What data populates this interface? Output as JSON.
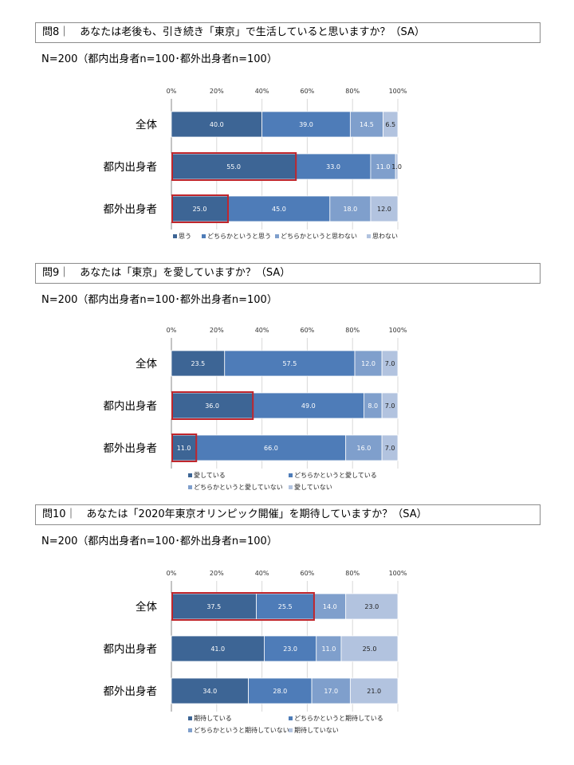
{
  "colors": [
    "#3d6595",
    "#4e7cb8",
    "#7f9fcc",
    "#b2c3df"
  ],
  "highlight_color": "#c0262c",
  "axis_ticks": [
    "0%",
    "20%",
    "40%",
    "60%",
    "80%",
    "100%"
  ],
  "sections": [
    {
      "question": "問8｜　あなたは老後も、引き続き「東京」で生活していると思いますか？（SA）",
      "n_text": "N=200（都内出身者n=100･都外出身者n=100）"
    },
    {
      "question": "問9｜　あなたは「東京」を愛していますか？（SA）",
      "n_text": "N=200（都内出身者n=100･都外出身者n=100）"
    },
    {
      "question": "問10｜　あなたは「2020年東京オリンピック開催」を期待していますか？（SA）",
      "n_text": "N=200（都内出身者n=100･都外出身者n=100）"
    }
  ],
  "chart_data": [
    {
      "type": "bar",
      "stacked": true,
      "orientation": "horizontal",
      "xlim": [
        0,
        100
      ],
      "categories": [
        "全体",
        "都内出身者",
        "都外出身者"
      ],
      "series": [
        {
          "name": "思う",
          "values": [
            40.0,
            55.0,
            25.0
          ]
        },
        {
          "name": "どちらかというと思う",
          "values": [
            39.0,
            33.0,
            45.0
          ]
        },
        {
          "name": "どちらかというと思わない",
          "values": [
            14.5,
            11.0,
            18.0
          ]
        },
        {
          "name": "思わない",
          "values": [
            6.5,
            1.0,
            12.0
          ]
        }
      ],
      "highlight": [
        {
          "category": 1,
          "series": [
            0
          ]
        },
        {
          "category": 2,
          "series": [
            0
          ]
        }
      ],
      "legend": "bottom",
      "legend_rows": 1
    },
    {
      "type": "bar",
      "stacked": true,
      "orientation": "horizontal",
      "xlim": [
        0,
        100
      ],
      "categories": [
        "全体",
        "都内出身者",
        "都外出身者"
      ],
      "series": [
        {
          "name": "愛している",
          "values": [
            23.5,
            36.0,
            11.0
          ]
        },
        {
          "name": "どちらかというと愛している",
          "values": [
            57.5,
            49.0,
            66.0
          ]
        },
        {
          "name": "どちらかというと愛していない",
          "values": [
            12.0,
            8.0,
            16.0
          ]
        },
        {
          "name": "愛していない",
          "values": [
            7.0,
            7.0,
            7.0
          ]
        }
      ],
      "highlight": [
        {
          "category": 1,
          "series": [
            0
          ]
        },
        {
          "category": 2,
          "series": [
            0
          ]
        }
      ],
      "legend": "bottom",
      "legend_rows": 2
    },
    {
      "type": "bar",
      "stacked": true,
      "orientation": "horizontal",
      "xlim": [
        0,
        100
      ],
      "categories": [
        "全体",
        "都内出身者",
        "都外出身者"
      ],
      "series": [
        {
          "name": "期待している",
          "values": [
            37.5,
            41.0,
            34.0
          ]
        },
        {
          "name": "どちらかというと期待している",
          "values": [
            25.5,
            23.0,
            28.0
          ]
        },
        {
          "name": "どちらかというと期待していない",
          "values": [
            14.0,
            11.0,
            17.0
          ]
        },
        {
          "name": "期待していない",
          "values": [
            23.0,
            25.0,
            21.0
          ]
        }
      ],
      "highlight": [
        {
          "category": 0,
          "series": [
            0,
            1
          ]
        }
      ],
      "legend": "bottom",
      "legend_rows": 2
    }
  ]
}
